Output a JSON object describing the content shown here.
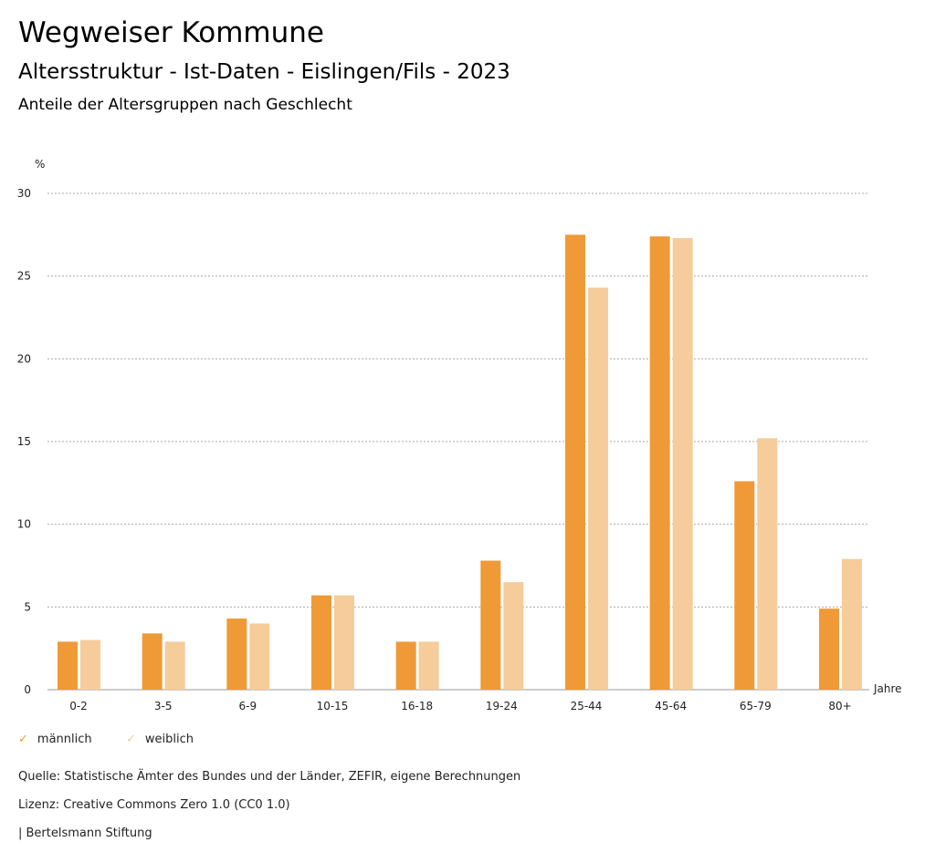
{
  "header": {
    "title": "Wegweiser Kommune",
    "subtitle": "Altersstruktur - Ist-Daten - Eislingen/Fils - 2023",
    "chart_title": "Anteile der Altersgruppen nach Geschlecht"
  },
  "chart_data": {
    "type": "bar",
    "title": "Anteile der Altersgruppen nach Geschlecht",
    "ylabel": "%",
    "xlabel": "Jahre",
    "ylim": [
      0,
      30
    ],
    "yticks": [
      "0",
      "5",
      "10",
      "15",
      "20",
      "25",
      "30"
    ],
    "grid": true,
    "legend_position": "bottom-left",
    "categories": [
      "0-2",
      "3-5",
      "6-9",
      "10-15",
      "16-18",
      "19-24",
      "25-44",
      "45-64",
      "65-79",
      "80+"
    ],
    "series": [
      {
        "name": "männlich",
        "color": "#ef9a36",
        "values": [
          2.9,
          3.4,
          4.3,
          5.7,
          2.9,
          7.8,
          27.5,
          27.4,
          12.6,
          4.9
        ]
      },
      {
        "name": "weiblich",
        "color": "#f5cc9a",
        "values": [
          3.0,
          2.9,
          4.0,
          5.7,
          2.9,
          6.5,
          24.3,
          27.3,
          15.2,
          7.9
        ]
      }
    ]
  },
  "footer": {
    "source": "Quelle: Statistische Ämter des Bundes und der Länder, ZEFIR, eigene Berechnungen",
    "license": "Lizenz: Creative Commons Zero 1.0 (CC0 1.0)",
    "brand": "| Bertelsmann Stiftung"
  }
}
